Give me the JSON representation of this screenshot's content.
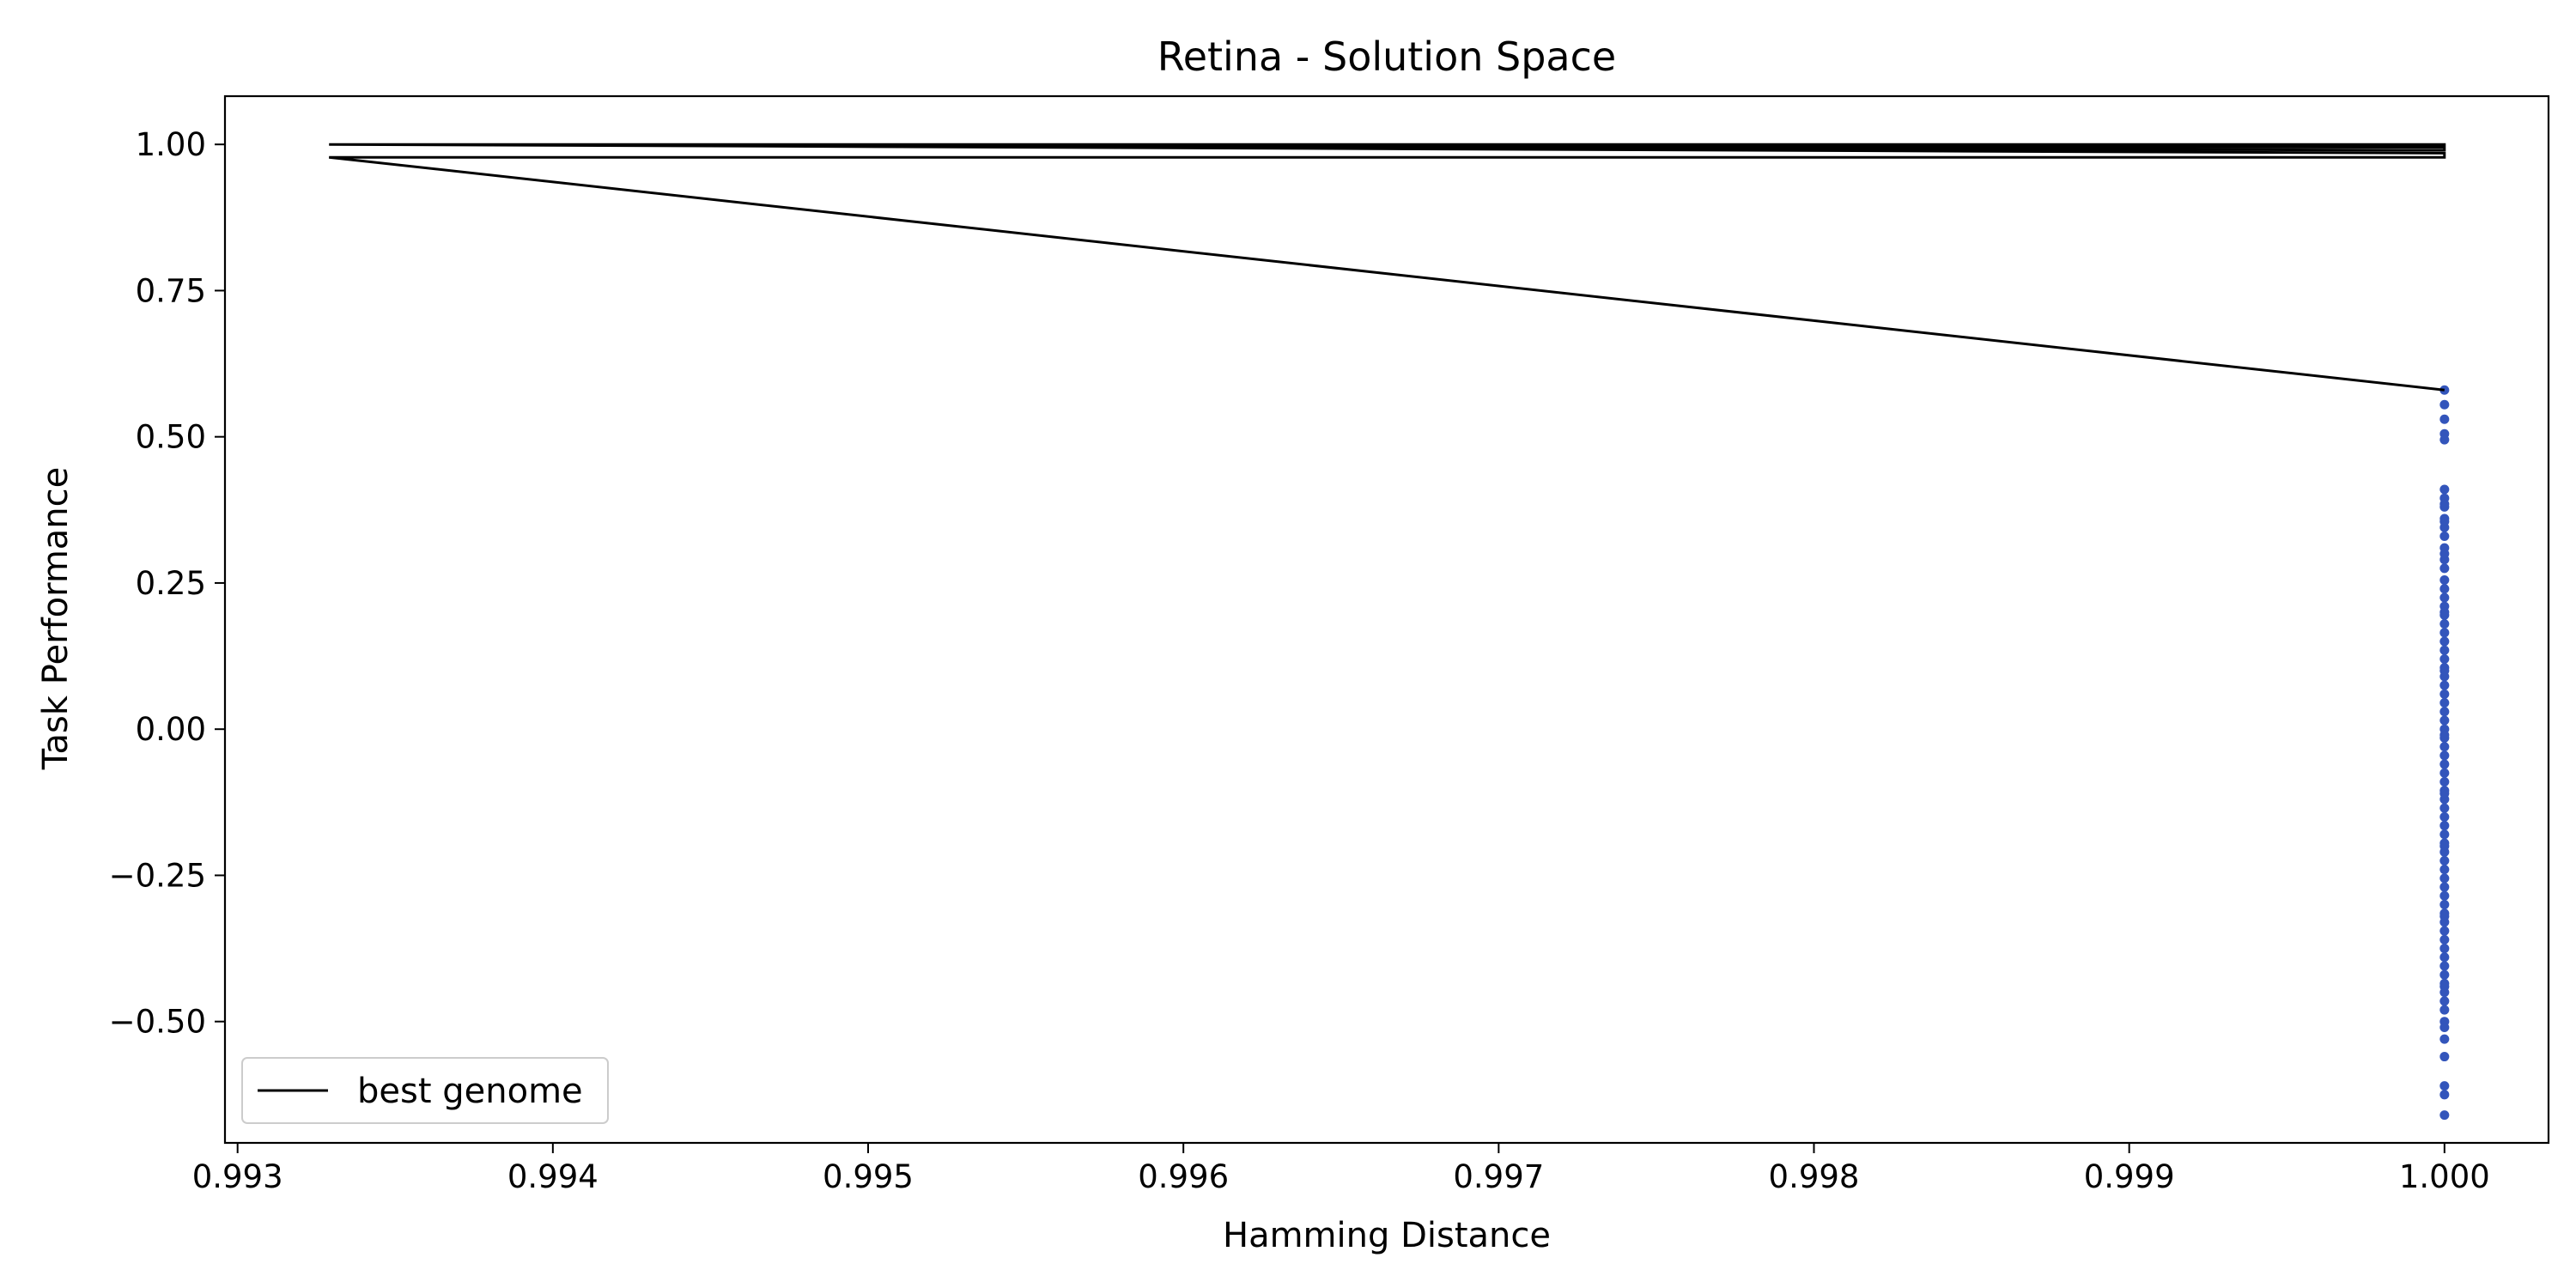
{
  "chart_data": {
    "type": "scatter",
    "title": "Retina - Solution Space",
    "xlabel": "Hamming Distance",
    "ylabel": "Task Performance",
    "xlim": [
      0.99296,
      1.00033
    ],
    "ylim": [
      -0.7075,
      1.0825
    ],
    "xticks": [
      0.993,
      0.994,
      0.995,
      0.996,
      0.997,
      0.998,
      0.999,
      1.0
    ],
    "xtick_labels": [
      "0.993",
      "0.994",
      "0.995",
      "0.996",
      "0.997",
      "0.998",
      "0.999",
      "1.000"
    ],
    "yticks": [
      -0.5,
      -0.25,
      0.0,
      0.25,
      0.5,
      0.75,
      1.0
    ],
    "ytick_labels": [
      "−0.50",
      "−0.25",
      "0.00",
      "0.25",
      "0.50",
      "0.75",
      "1.00"
    ],
    "grid": false,
    "legend": {
      "position": "lower-left",
      "entries": [
        "best genome"
      ]
    },
    "colors": {
      "line": "#000000",
      "points": "#3355bb"
    },
    "series": [
      {
        "name": "best genome",
        "type": "line",
        "x": [
          0.99329,
          1.0,
          1.0,
          0.99329,
          1.0,
          1.0,
          0.99329,
          1.0,
          1.0,
          0.99329,
          1.0
        ],
        "y": [
          1.0,
          1.0,
          0.999,
          1.0,
          0.995,
          0.99,
          1.0,
          0.985,
          0.978,
          0.978,
          0.58
        ]
      },
      {
        "type": "scatter",
        "x": [
          1.0,
          1.0,
          1.0,
          1.0,
          1.0,
          1.0,
          1.0,
          1.0,
          1.0,
          1.0,
          1.0,
          1.0,
          1.0,
          1.0,
          1.0,
          1.0,
          1.0,
          1.0,
          1.0,
          1.0,
          1.0,
          1.0,
          1.0,
          1.0,
          1.0,
          1.0,
          1.0,
          1.0,
          1.0,
          1.0,
          1.0,
          1.0,
          1.0,
          1.0,
          1.0,
          1.0,
          1.0,
          1.0,
          1.0,
          1.0,
          1.0,
          1.0,
          1.0,
          1.0,
          1.0,
          1.0,
          1.0,
          1.0,
          1.0,
          1.0,
          1.0,
          1.0,
          1.0,
          1.0,
          1.0,
          1.0,
          1.0,
          1.0,
          1.0,
          1.0,
          1.0,
          1.0,
          1.0,
          1.0,
          1.0,
          1.0,
          1.0,
          1.0,
          1.0,
          1.0,
          1.0,
          1.0,
          1.0,
          1.0,
          1.0,
          1.0,
          1.0,
          1.0,
          1.0,
          1.0,
          1.0
        ],
        "y": [
          0.58,
          0.555,
          0.53,
          0.505,
          0.495,
          0.41,
          0.395,
          0.38,
          0.36,
          0.345,
          0.33,
          0.31,
          0.29,
          0.275,
          0.255,
          0.24,
          0.225,
          0.21,
          0.195,
          0.18,
          0.165,
          0.15,
          0.135,
          0.12,
          0.105,
          0.09,
          0.075,
          0.06,
          0.045,
          0.03,
          0.015,
          0.0,
          -0.015,
          -0.03,
          -0.045,
          -0.06,
          -0.075,
          -0.09,
          -0.105,
          -0.12,
          -0.135,
          -0.15,
          -0.165,
          -0.18,
          -0.195,
          -0.21,
          -0.225,
          -0.24,
          -0.255,
          -0.27,
          -0.285,
          -0.3,
          -0.315,
          -0.33,
          -0.345,
          -0.36,
          -0.375,
          -0.39,
          -0.405,
          -0.42,
          -0.435,
          -0.45,
          -0.465,
          -0.48,
          -0.5,
          -0.51,
          -0.53,
          -0.56,
          -0.61,
          -0.625,
          -0.66,
          0.385,
          0.355,
          0.3,
          0.2,
          0.1,
          -0.01,
          -0.11,
          -0.2,
          -0.32,
          -0.44
        ]
      }
    ]
  }
}
